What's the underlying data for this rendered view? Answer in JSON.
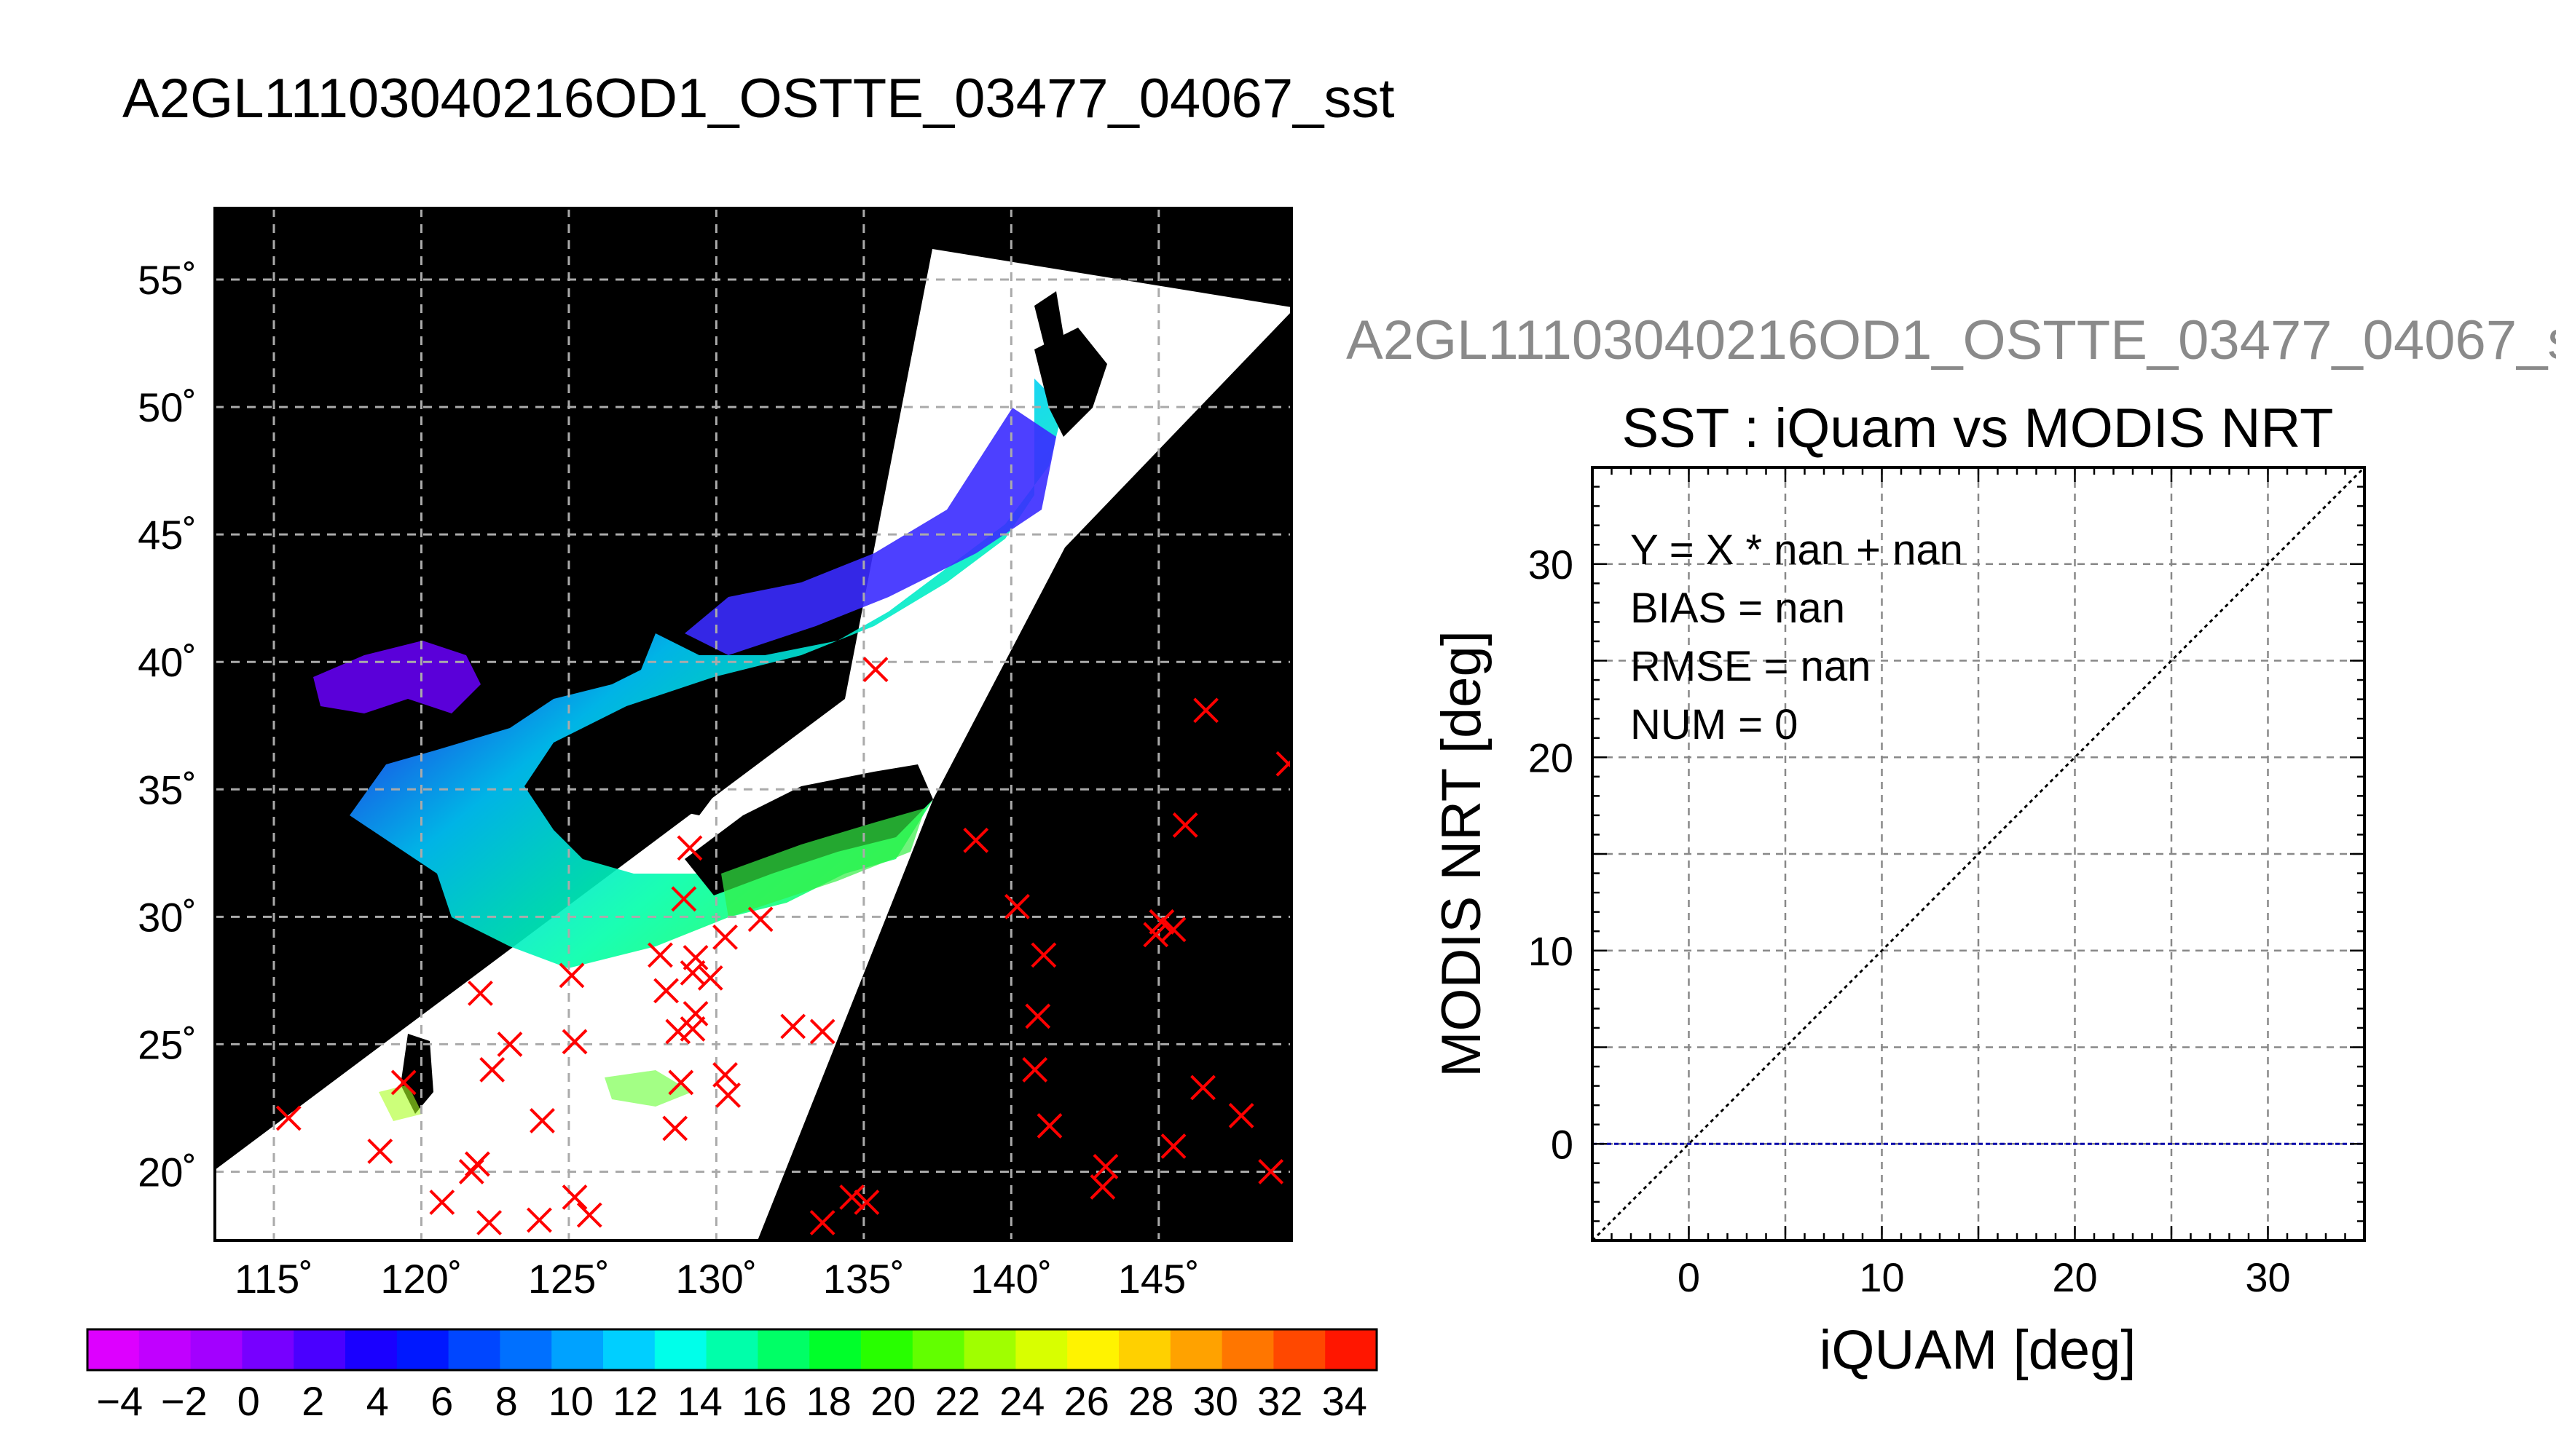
{
  "main_title": "A2GL11103040216OD1_OSTTE_03477_04067_sst",
  "scatter_suptitle": "A2GL11103040216OD1_OSTTE_03477_04067_s",
  "chart_data": [
    {
      "type": "map",
      "xticks": [
        "115˚",
        "120˚",
        "125˚",
        "130˚",
        "135˚",
        "140˚",
        "145˚"
      ],
      "xtick_values": [
        115,
        120,
        125,
        130,
        135,
        140,
        145
      ],
      "yticks": [
        "20˚",
        "25˚",
        "30˚",
        "35˚",
        "40˚",
        "45˚",
        "50˚",
        "55˚"
      ],
      "ytick_values": [
        20,
        25,
        30,
        35,
        40,
        45,
        50,
        55
      ],
      "xlim": [
        113,
        149.5
      ],
      "ylim": [
        17.3,
        57.8
      ],
      "grid": true,
      "markers": {
        "symbol": "x",
        "color": "#ff0000",
        "points": [
          [
            115.5,
            22.1
          ],
          [
            118.6,
            20.8
          ],
          [
            119.4,
            23.5
          ],
          [
            120.7,
            18.8
          ],
          [
            121.7,
            20.0
          ],
          [
            121.9,
            20.3
          ],
          [
            122.0,
            27.0
          ],
          [
            122.3,
            18.0
          ],
          [
            122.4,
            24.0
          ],
          [
            123.0,
            25.0
          ],
          [
            124.0,
            18.1
          ],
          [
            124.1,
            22.0
          ],
          [
            125.1,
            27.7
          ],
          [
            125.2,
            25.1
          ],
          [
            125.2,
            19.0
          ],
          [
            125.7,
            18.3
          ],
          [
            128.1,
            28.5
          ],
          [
            128.3,
            27.1
          ],
          [
            128.7,
            25.5
          ],
          [
            128.8,
            23.5
          ],
          [
            128.6,
            21.7
          ],
          [
            128.9,
            30.7
          ],
          [
            129.1,
            32.7
          ],
          [
            129.2,
            27.8
          ],
          [
            129.3,
            28.4
          ],
          [
            129.3,
            26.2
          ],
          [
            129.2,
            25.6
          ],
          [
            129.8,
            27.6
          ],
          [
            130.3,
            29.2
          ],
          [
            130.3,
            23.8
          ],
          [
            130.4,
            23.0
          ],
          [
            131.5,
            29.9
          ],
          [
            132.6,
            25.7
          ],
          [
            133.6,
            25.5
          ],
          [
            133.6,
            18.0
          ],
          [
            134.6,
            19.0
          ],
          [
            135.1,
            18.8
          ],
          [
            135.4,
            39.7
          ],
          [
            138.8,
            33.0
          ],
          [
            140.2,
            30.4
          ],
          [
            141.1,
            28.5
          ],
          [
            140.9,
            26.1
          ],
          [
            140.8,
            24.0
          ],
          [
            141.3,
            21.8
          ],
          [
            143.1,
            19.4
          ],
          [
            143.2,
            20.2
          ],
          [
            144.9,
            29.3
          ],
          [
            145.1,
            29.8
          ],
          [
            145.5,
            29.5
          ],
          [
            145.5,
            21.0
          ],
          [
            145.9,
            33.6
          ],
          [
            146.5,
            23.3
          ],
          [
            146.6,
            38.1
          ],
          [
            147.8,
            22.2
          ],
          [
            148.8,
            20.0
          ],
          [
            149.4,
            36.0
          ]
        ]
      }
    },
    {
      "type": "colorbar",
      "tick_labels": [
        "−4",
        "−2",
        "0",
        "2",
        "4",
        "6",
        "8",
        "10",
        "12",
        "14",
        "16",
        "18",
        "20",
        "22",
        "24",
        "26",
        "28",
        "30",
        "32",
        "34"
      ],
      "range": [
        -5,
        35
      ],
      "step": 2,
      "colors": [
        "#dd00ff",
        "#c100ff",
        "#a300ff",
        "#7700ff",
        "#4a00ff",
        "#1a00ff",
        "#0018ff",
        "#0046ff",
        "#0070ff",
        "#00a2ff",
        "#00cfff",
        "#00ffea",
        "#00ffaa",
        "#00ff66",
        "#00ff2a",
        "#28ff00",
        "#62ff00",
        "#a0ff00",
        "#d8ff00",
        "#fff300",
        "#ffd000",
        "#ffa200",
        "#ff7600",
        "#ff4800",
        "#ff1600"
      ]
    },
    {
      "type": "scatter",
      "title": "SST : iQuam vs MODIS NRT",
      "xlabel": "iQUAM [deg]",
      "ylabel": "MODIS NRT [deg]",
      "xlim": [
        -5,
        35
      ],
      "ylim": [
        -5,
        35
      ],
      "xticks": [
        0,
        10,
        20,
        30
      ],
      "yticks": [
        0,
        10,
        20,
        30
      ],
      "grid": true,
      "annotations": [
        "Y = X * nan + nan",
        "BIAS = nan",
        "RMSE = nan",
        "NUM = 0"
      ],
      "lines": [
        {
          "kind": "identity",
          "color": "#000000",
          "style": "dotted"
        },
        {
          "kind": "y=0",
          "color": "#0000aa",
          "style": "dashed"
        }
      ],
      "points": []
    }
  ]
}
